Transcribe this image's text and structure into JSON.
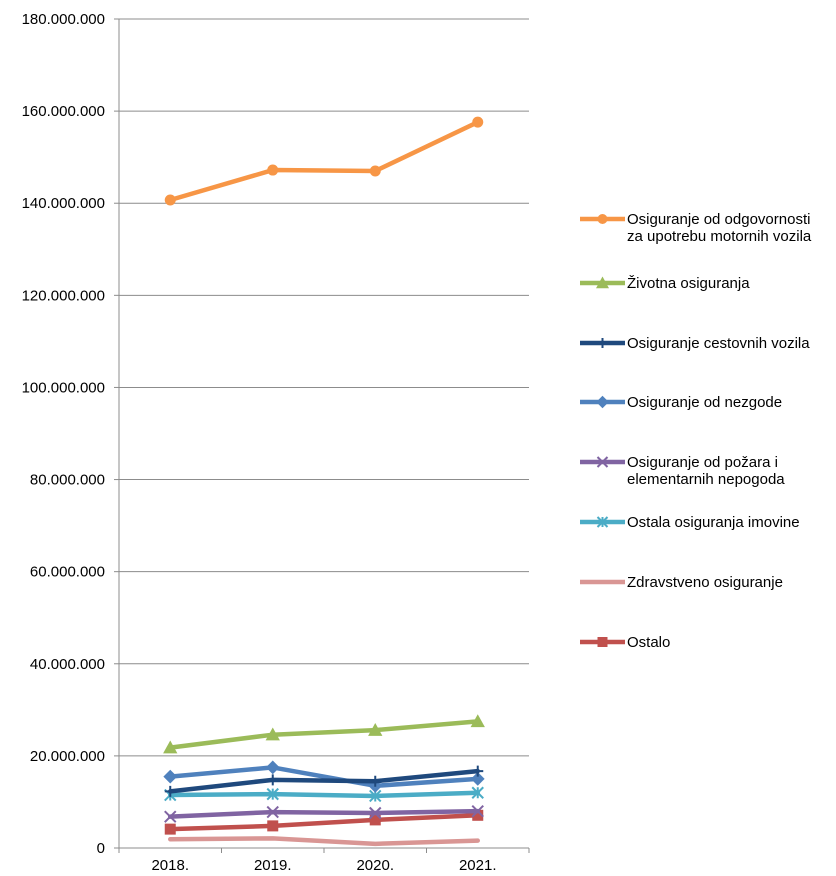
{
  "chart_data": {
    "type": "line",
    "title": "",
    "xlabel": "",
    "ylabel": "",
    "categories": [
      "2018.",
      "2019.",
      "2020.",
      "2021."
    ],
    "ylim": [
      0,
      180000000
    ],
    "y_ticks": [
      "0",
      "20.000.000",
      "40.000.000",
      "60.000.000",
      "80.000.000",
      "100.000.000",
      "120.000.000",
      "140.000.000",
      "160.000.000",
      "180.000.000"
    ],
    "grid": true,
    "legend_position": "right",
    "series": [
      {
        "name": "Osiguranje od odgovornosti za upotrebu motornih vozila",
        "legend_lines": [
          "Osiguranje od odgovornosti",
          "za upotrebu motornih vozila"
        ],
        "color": "#F79646",
        "marker": "circle",
        "values": [
          140700000,
          147200000,
          147000000,
          157600000
        ]
      },
      {
        "name": "Životna osiguranja",
        "legend_lines": [
          "Životna osiguranja"
        ],
        "color": "#9BBB59",
        "marker": "triangle",
        "values": [
          21800000,
          24600000,
          25600000,
          27500000
        ]
      },
      {
        "name": "Osiguranje cestovnih vozila",
        "legend_lines": [
          "Osiguranje cestovnih vozila"
        ],
        "color": "#1F497D",
        "marker": "plus",
        "values": [
          12300000,
          14800000,
          14500000,
          16700000
        ]
      },
      {
        "name": "Osiguranje od nezgode",
        "legend_lines": [
          "Osiguranje od nezgode"
        ],
        "color": "#4F81BD",
        "marker": "diamond",
        "values": [
          15500000,
          17500000,
          13500000,
          15000000
        ]
      },
      {
        "name": "Osiguranje od požara i elementarnih nepogoda",
        "legend_lines": [
          "Osiguranje od požara i",
          "elementarnih nepogoda"
        ],
        "color": "#8064A2",
        "marker": "x",
        "values": [
          6800000,
          7800000,
          7600000,
          8000000
        ]
      },
      {
        "name": "Ostala osiguranja imovine",
        "legend_lines": [
          "Ostala osiguranja imovine"
        ],
        "color": "#4BACC6",
        "marker": "asterisk",
        "values": [
          11500000,
          11700000,
          11300000,
          12000000
        ]
      },
      {
        "name": "Zdravstveno osiguranje",
        "legend_lines": [
          "Zdravstveno osiguranje"
        ],
        "color": "#D99694",
        "marker": "none",
        "values": [
          1900000,
          2100000,
          900000,
          1600000
        ]
      },
      {
        "name": "Ostalo",
        "legend_lines": [
          "Ostalo"
        ],
        "color": "#C0504D",
        "marker": "square",
        "values": [
          4100000,
          4800000,
          6100000,
          7100000
        ]
      }
    ]
  }
}
